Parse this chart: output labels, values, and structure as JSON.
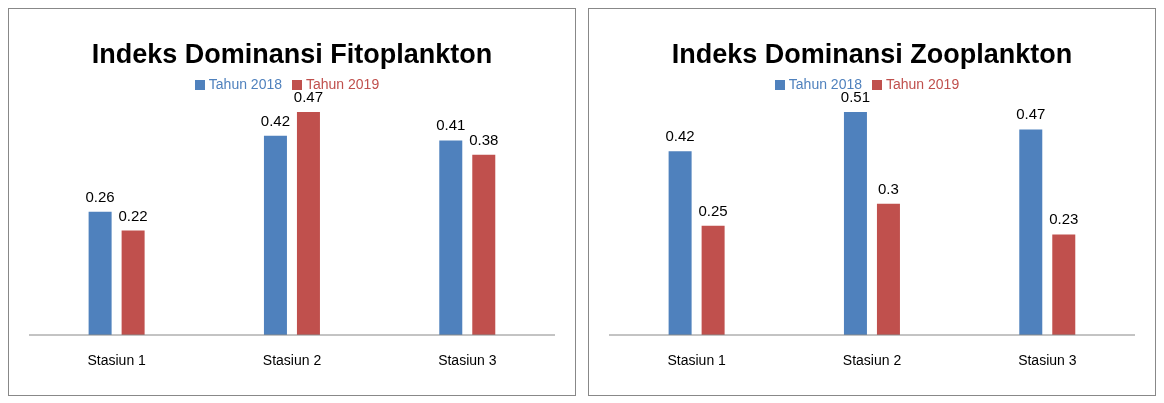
{
  "chart_data": [
    {
      "type": "bar",
      "title": "Indeks Dominansi Fitoplankton",
      "categories": [
        "Stasiun 1",
        "Stasiun 2",
        "Stasiun 3"
      ],
      "series": [
        {
          "name": "Tahun 2018",
          "color": "#4f81bd",
          "values": [
            0.26,
            0.42,
            0.41
          ]
        },
        {
          "name": "Tahun 2019",
          "color": "#c0504d",
          "values": [
            0.22,
            0.47,
            0.38
          ]
        }
      ],
      "data_labels": true,
      "legend": "top",
      "grid": false
    },
    {
      "type": "bar",
      "title": "Indeks Dominansi Zooplankton",
      "categories": [
        "Stasiun 1",
        "Stasiun 2",
        "Stasiun 3"
      ],
      "series": [
        {
          "name": "Tahun 2018",
          "color": "#4f81bd",
          "values": [
            0.42,
            0.51,
            0.47
          ]
        },
        {
          "name": "Tahun 2019",
          "color": "#c0504d",
          "values": [
            0.25,
            0.3,
            0.23
          ]
        }
      ],
      "data_labels": true,
      "legend": "top",
      "grid": false
    }
  ]
}
